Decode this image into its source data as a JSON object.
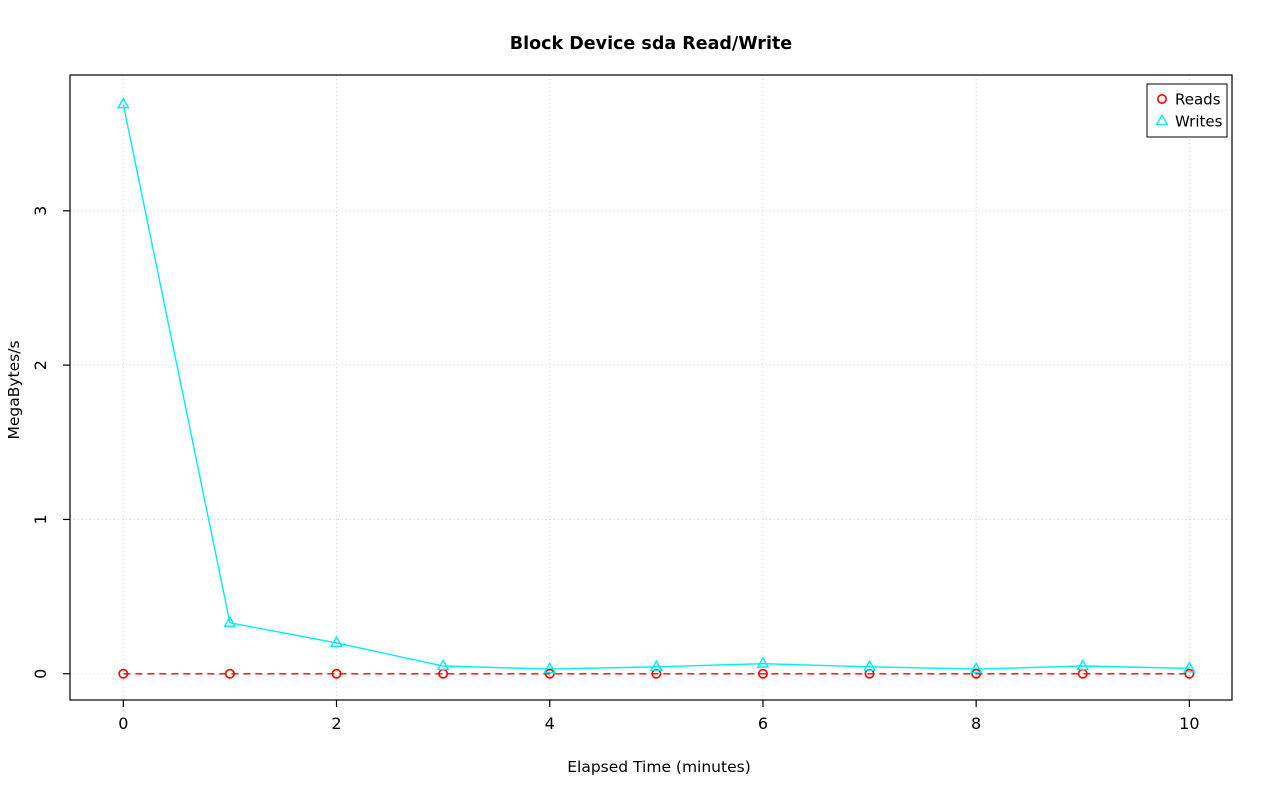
{
  "chart_data": {
    "type": "line",
    "title": "Block Device sda Read/Write",
    "xlabel": "Elapsed Time (minutes)",
    "ylabel": "MegaBytes/s",
    "x": [
      0,
      1,
      2,
      3,
      4,
      5,
      6,
      7,
      8,
      9,
      10
    ],
    "series": [
      {
        "name": "Reads",
        "color": "#FF0000",
        "marker": "circle",
        "line_style": "dashed",
        "values": [
          0,
          0,
          0,
          0,
          0,
          0,
          0,
          0,
          0,
          0,
          0
        ]
      },
      {
        "name": "Writes",
        "color": "#00EEEE",
        "marker": "triangle",
        "line_style": "solid",
        "values": [
          3.69,
          0.33,
          0.2,
          0.05,
          0.03,
          0.045,
          0.065,
          0.045,
          0.03,
          0.05,
          0.035
        ]
      }
    ],
    "xticks": [
      0,
      2,
      4,
      6,
      8,
      10
    ],
    "yticks": [
      0,
      1,
      2,
      3
    ],
    "xlim": [
      -0.5,
      10.4
    ],
    "ylim": [
      -0.17,
      3.88
    ],
    "grid": true,
    "grid_color": "#D3D3D3",
    "axis_color": "#000000",
    "background": "#FFFFFF",
    "legend_position": "top-right",
    "legend_labels": [
      "Reads",
      "Writes"
    ]
  }
}
